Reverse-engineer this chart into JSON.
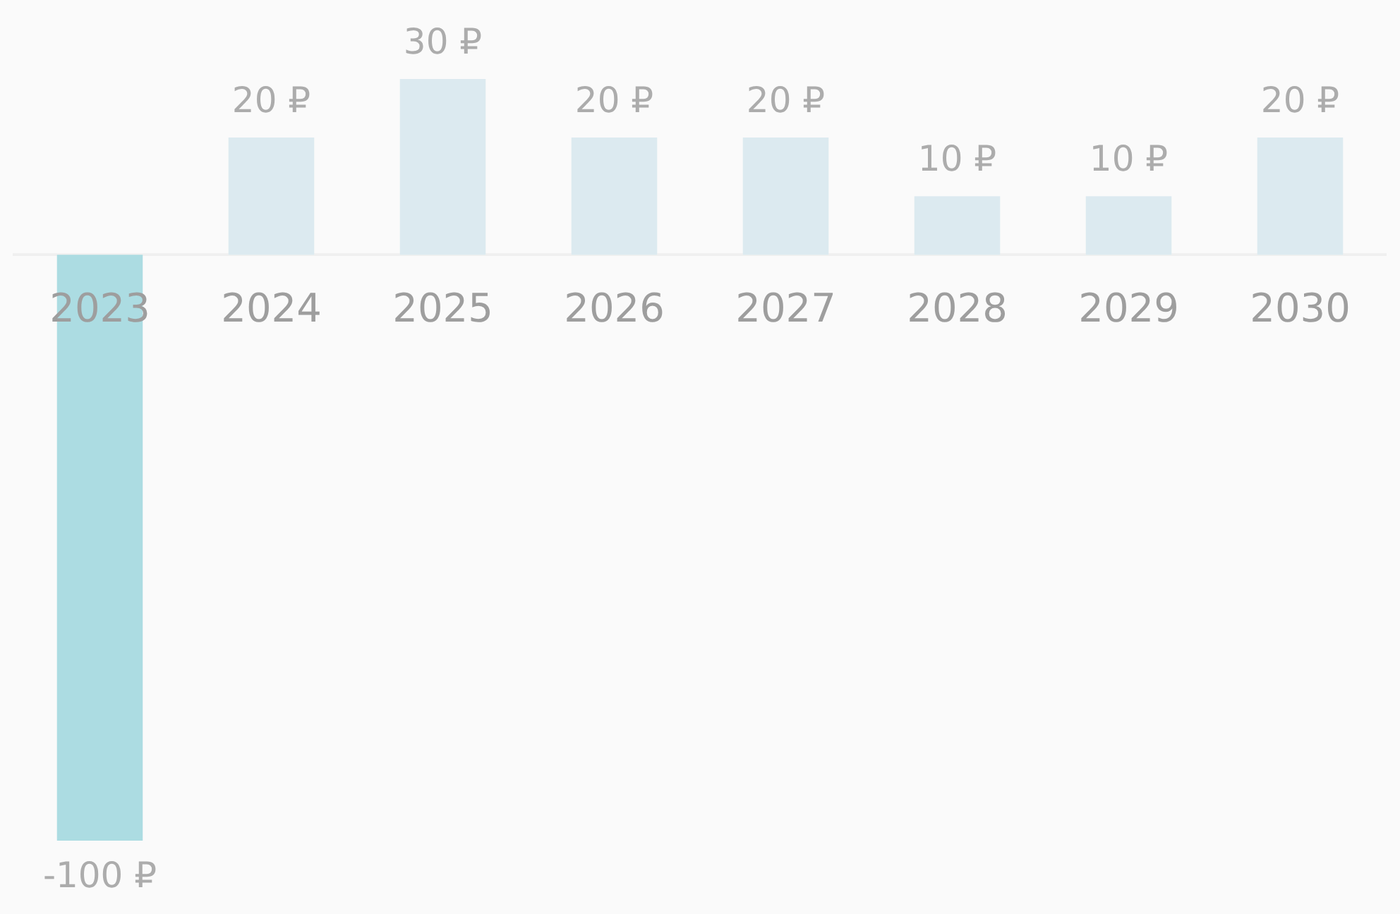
{
  "chart_data": {
    "type": "bar",
    "categories": [
      "2023",
      "2024",
      "2025",
      "2026",
      "2027",
      "2028",
      "2029",
      "2030"
    ],
    "values": [
      -100,
      20,
      30,
      20,
      20,
      10,
      10,
      20
    ],
    "colors": [
      "#acdce2",
      "#dceaf0",
      "#dceaf0",
      "#dceaf0",
      "#dceaf0",
      "#dceaf0",
      "#dceaf0",
      "#dceaf0"
    ],
    "value_labels": [
      "-100 ₽",
      "20 ₽",
      "30 ₽",
      "20 ₽",
      "20 ₽",
      "10 ₽",
      "10 ₽",
      "20 ₽"
    ],
    "grid": false,
    "legend": false
  }
}
